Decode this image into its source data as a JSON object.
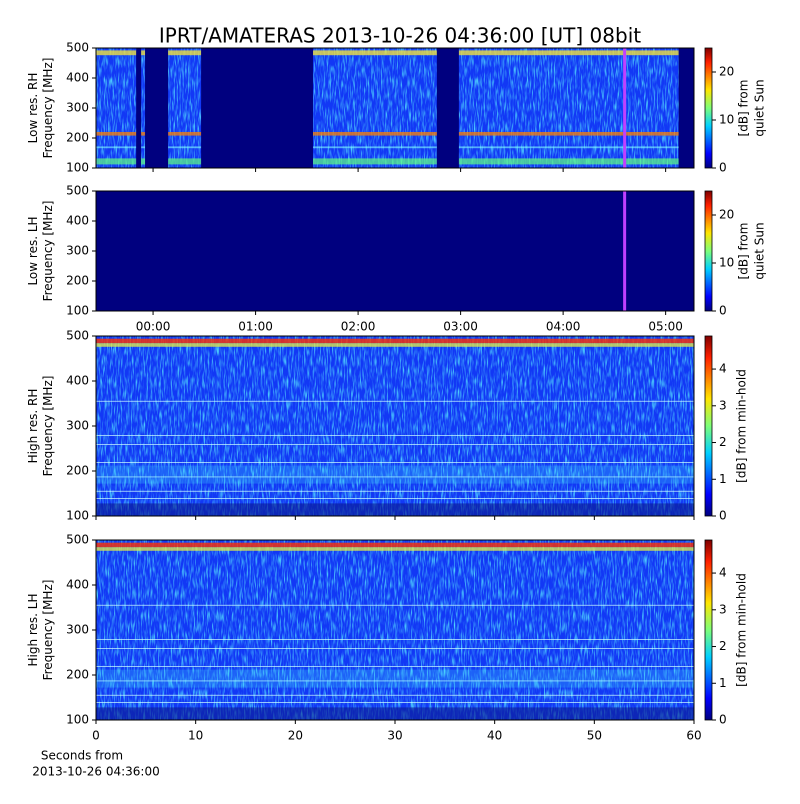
{
  "chart_data": {
    "type": "heatmap",
    "title": "IPRT/AMATERAS 2013-10-26 04:36:00 [UT]   08bit",
    "time_axis": {
      "xlim": [
        -33.4,
        316.6
      ],
      "xticks": [
        {
          "value": 0,
          "label": "00:00"
        },
        {
          "value": 60,
          "label": "01:00"
        },
        {
          "value": 120,
          "label": "02:00"
        },
        {
          "value": 180,
          "label": "03:00"
        },
        {
          "value": 240,
          "label": "04:00"
        },
        {
          "value": 300,
          "label": "05:00"
        }
      ],
      "marker": 276,
      "marker_color": "#c040ff"
    },
    "seconds_axis": {
      "xlim": [
        0,
        60
      ],
      "xticks": [
        0,
        10,
        20,
        30,
        40,
        50,
        60
      ],
      "xlabel": [
        "Seconds from",
        "2013-10-26 04:36:00"
      ]
    },
    "panels": [
      {
        "ylabel": [
          "Low res. RH",
          "Frequency [MHz]"
        ],
        "ylim": [
          100,
          500
        ],
        "yticks": [
          100,
          200,
          300,
          400,
          500
        ],
        "colorbar_label": [
          "[dB] from",
          "quiet Sun"
        ],
        "clim": [
          0,
          25
        ],
        "cticks": [
          0,
          10,
          20
        ],
        "gaps": [
          [
            -9.9,
            -7.0
          ],
          [
            -4.7,
            8.8
          ],
          [
            28.1,
            93.6
          ],
          [
            166.1,
            179.0
          ],
          [
            307.6,
            316.6
          ]
        ]
      },
      {
        "ylabel": [
          "Low res. LH",
          "Frequency [MHz]"
        ],
        "ylim": [
          100,
          500
        ],
        "yticks": [
          100,
          200,
          300,
          400,
          500
        ],
        "colorbar_label": [
          "[dB] from",
          "quiet Sun"
        ],
        "clim": [
          0,
          25
        ],
        "cticks": [
          0,
          10,
          20
        ]
      },
      {
        "ylabel": [
          "High res. RH",
          "Frequency [MHz]"
        ],
        "ylim": [
          100,
          500
        ],
        "yticks": [
          100,
          200,
          300,
          400,
          500
        ],
        "colorbar_label": [
          "[dB] from min-hold"
        ],
        "clim": [
          0,
          4.9
        ],
        "cticks": [
          0,
          1,
          2,
          3,
          4
        ]
      },
      {
        "ylabel": [
          "High res. LH",
          "Frequency [MHz]"
        ],
        "ylim": [
          100,
          500
        ],
        "yticks": [
          100,
          200,
          300,
          400,
          500
        ],
        "colorbar_label": [
          "[dB] from min-hold"
        ],
        "clim": [
          0,
          4.9
        ],
        "cticks": [
          0,
          1,
          2,
          3,
          4
        ]
      }
    ]
  }
}
